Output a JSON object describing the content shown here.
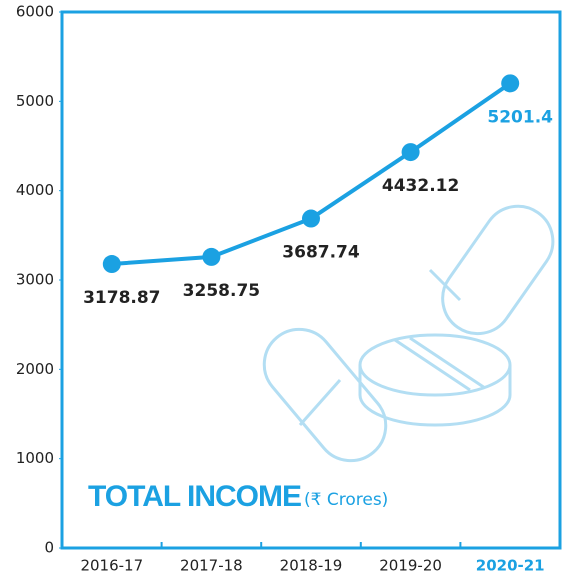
{
  "chart_data": {
    "type": "line",
    "title": "TOTAL INCOME",
    "subtitle": "(₹ Crores)",
    "categories": [
      "2016-17",
      "2017-18",
      "2018-19",
      "2019-20",
      "2020-21"
    ],
    "values": [
      3178.87,
      3258.75,
      3687.74,
      4432.12,
      5201.4
    ],
    "color": "#1ba1e2",
    "highlight_index": 4,
    "ylim": [
      0,
      6000
    ],
    "yticks": [
      0,
      1000,
      2000,
      3000,
      4000,
      5000,
      6000
    ]
  }
}
